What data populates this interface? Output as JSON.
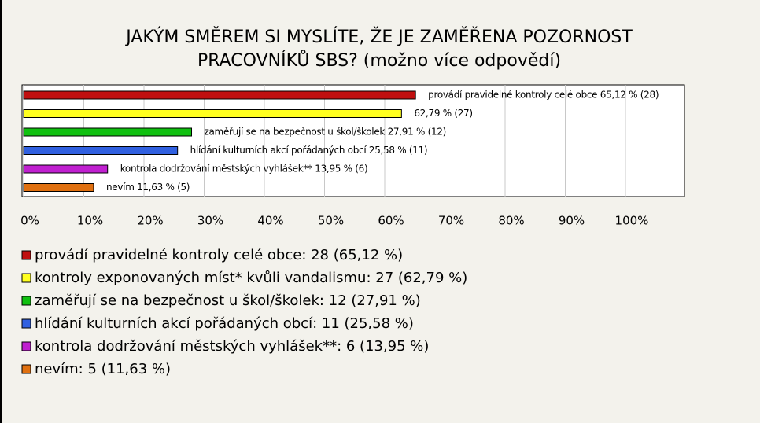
{
  "chart_data": {
    "type": "bar",
    "orientation": "horizontal",
    "title": [
      "JAKÝM SMĚREM SI MYSLÍTE, ŽE JE ZAMĚŘENA POZORNOST",
      "PRACOVNÍKŮ SBS? (možno více odpovědí)"
    ],
    "categories": [
      "provádí pravidelné kontroly celé obce: 28 (65,12 %)",
      "kontroly exponovaných míst* kvůli vandalismu: 27 (62,79 %)",
      "zaměřují se na bezpečnost u škol/školek: 12 (27,91 %)",
      "hlídání kulturních akcí pořádaných obcí: 11 (25,58 %)",
      "kontrola dodržování městských vyhlášek**: 6 (13,95 %)",
      "nevím: 5 (11,63 %)"
    ],
    "values": [
      65.12,
      62.79,
      27.91,
      25.58,
      13.95,
      11.63
    ],
    "value_labels": [
      "provádí pravidelné kontroly celé obce 65,12 % (28)",
      "62,79 % (27)",
      "zaměřují se na bezpečnost u škol/školek 27,91 % (12)",
      "hlídání kulturních akcí pořádaných obcí 25,58 % (11)",
      "kontrola dodržování městských vyhlášek** 13,95 % (6)",
      "nevím 11,63 % (5)"
    ],
    "colors": [
      "#c01010",
      "#ffff20",
      "#10c010",
      "#3060e0",
      "#c020d0",
      "#e07010"
    ],
    "xlim": [
      0,
      100
    ],
    "xticks": [
      {
        "value": 0,
        "label": "0%"
      },
      {
        "value": 10,
        "label": "10%"
      },
      {
        "value": 20,
        "label": "20%"
      },
      {
        "value": 30,
        "label": "30%"
      },
      {
        "value": 40,
        "label": "40%"
      },
      {
        "value": 50,
        "label": "50%"
      },
      {
        "value": 60,
        "label": "60%"
      },
      {
        "value": 70,
        "label": "70%"
      },
      {
        "value": 80,
        "label": "80%"
      },
      {
        "value": 90,
        "label": "90%"
      },
      {
        "value": 100,
        "label": "100%"
      }
    ],
    "grid": true
  }
}
